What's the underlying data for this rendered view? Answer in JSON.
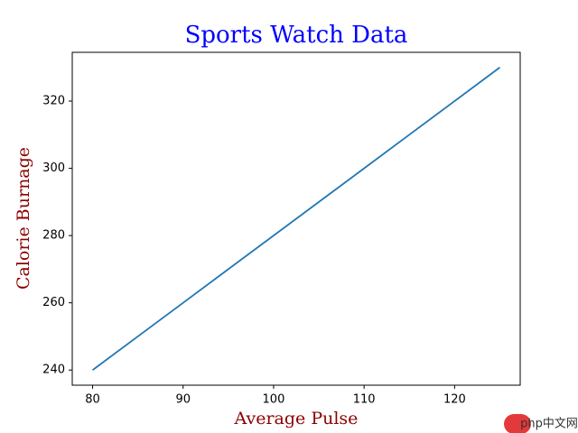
{
  "chart_data": {
    "type": "line",
    "title": "Sports Watch Data",
    "xlabel": "Average Pulse",
    "ylabel": "Calorie Burnage",
    "x": [
      80,
      85,
      90,
      95,
      100,
      105,
      110,
      115,
      120,
      125
    ],
    "series": [
      {
        "name": "Calorie Burnage",
        "color": "#1f77b4",
        "values": [
          240,
          250,
          260,
          270,
          280,
          290,
          300,
          310,
          320,
          330
        ]
      }
    ],
    "xlim": [
      77.75,
      127.25
    ],
    "ylim": [
      235.5,
      334.5
    ],
    "xticks": [
      80,
      90,
      100,
      110,
      120
    ],
    "yticks": [
      240,
      260,
      280,
      300,
      320
    ],
    "grid": false,
    "title_color": "blue",
    "label_color": "darkred"
  },
  "watermark": "php中文网"
}
